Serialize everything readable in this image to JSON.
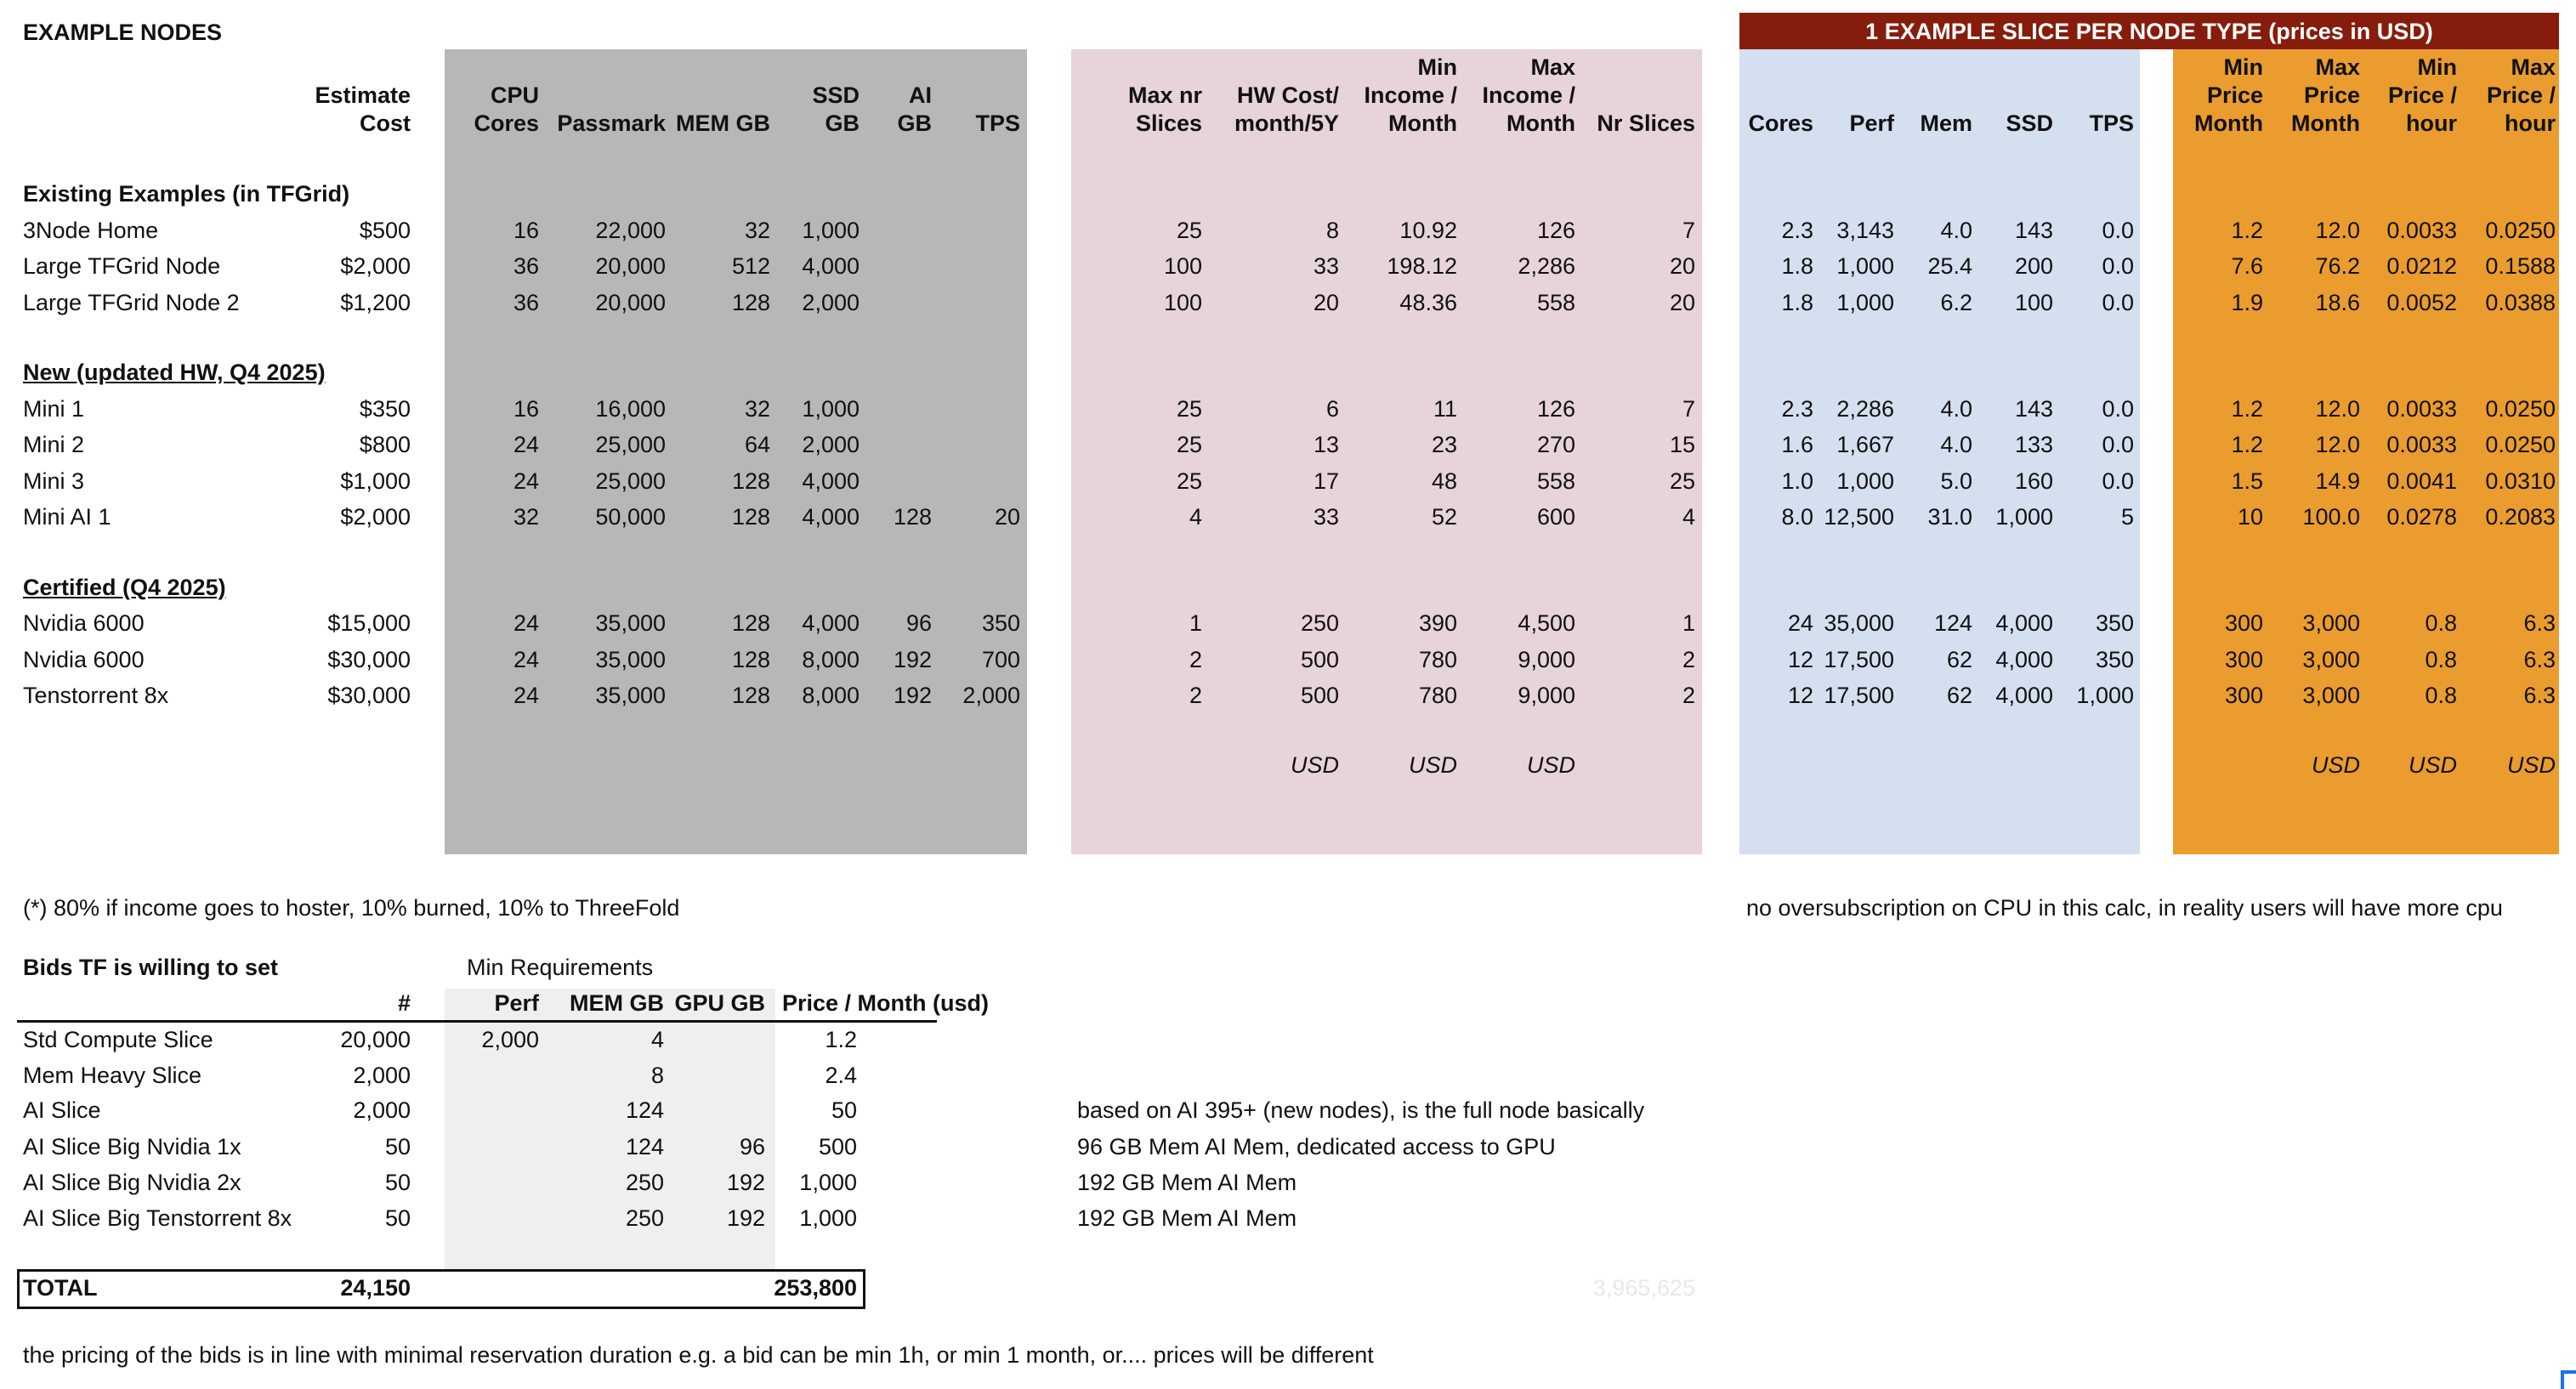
{
  "title": "EXAMPLE NODES",
  "slice_banner": "1 EXAMPLE SLICE PER NODE TYPE (prices in USD)",
  "colors": {
    "gray_band": "#b7b7b7",
    "pink_band": "#e6d3dc",
    "blue_band": "#d4e0f0",
    "orange_band": "#eb9c2e",
    "banner": "#861d0c",
    "bids_band": "#efefef"
  },
  "headers": [
    [
      "",
      "",
      "Estimate"
    ],
    [
      "",
      "",
      "Cost"
    ],
    [
      "",
      "CPU",
      "Cores"
    ],
    [
      "",
      "",
      "Passmark"
    ],
    [
      "",
      "",
      "MEM GB"
    ],
    [
      "",
      "SSD",
      "GB"
    ],
    [
      "",
      "AI",
      "GB"
    ],
    [
      "",
      "",
      "TPS"
    ],
    [
      "",
      "Max nr",
      "Slices"
    ],
    [
      "",
      "HW Cost/",
      "month/5Y"
    ],
    [
      "Min",
      "Income /",
      "Month"
    ],
    [
      "Max",
      "Income /",
      "Month"
    ],
    [
      "",
      "",
      "Nr Slices"
    ],
    [
      "",
      "",
      "Cores"
    ],
    [
      "",
      "",
      "Perf"
    ],
    [
      "",
      "",
      "Mem"
    ],
    [
      "",
      "",
      "SSD"
    ],
    [
      "",
      "",
      "TPS"
    ],
    [
      "Min",
      "Price",
      "Month"
    ],
    [
      "Max",
      "Price",
      "Month"
    ],
    [
      "Min",
      "Price /",
      "hour"
    ],
    [
      "Max",
      "Price /",
      "hour"
    ]
  ],
  "sections": [
    {
      "title": "Existing Examples (in TFGrid)",
      "underline": false,
      "rows": [
        [
          "3Node Home",
          "$500",
          "16",
          "22,000",
          "32",
          "1,000",
          "",
          "",
          "25",
          "8",
          "10.92",
          "126",
          "7",
          "2.3",
          "3,143",
          "4.0",
          "143",
          "0.0",
          "1.2",
          "12.0",
          "0.0033",
          "0.0250"
        ],
        [
          "Large TFGrid Node",
          "$2,000",
          "36",
          "20,000",
          "512",
          "4,000",
          "",
          "",
          "100",
          "33",
          "198.12",
          "2,286",
          "20",
          "1.8",
          "1,000",
          "25.4",
          "200",
          "0.0",
          "7.6",
          "76.2",
          "0.0212",
          "0.1588"
        ],
        [
          "Large TFGrid Node 2",
          "$1,200",
          "36",
          "20,000",
          "128",
          "2,000",
          "",
          "",
          "100",
          "20",
          "48.36",
          "558",
          "20",
          "1.8",
          "1,000",
          "6.2",
          "100",
          "0.0",
          "1.9",
          "18.6",
          "0.0052",
          "0.0388"
        ]
      ]
    },
    {
      "title": "New (updated HW, Q4 2025)",
      "underline": true,
      "rows": [
        [
          "Mini 1",
          "$350",
          "16",
          "16,000",
          "32",
          "1,000",
          "",
          "",
          "25",
          "6",
          "11",
          "126",
          "7",
          "2.3",
          "2,286",
          "4.0",
          "143",
          "0.0",
          "1.2",
          "12.0",
          "0.0033",
          "0.0250"
        ],
        [
          "Mini 2",
          "$800",
          "24",
          "25,000",
          "64",
          "2,000",
          "",
          "",
          "25",
          "13",
          "23",
          "270",
          "15",
          "1.6",
          "1,667",
          "4.0",
          "133",
          "0.0",
          "1.2",
          "12.0",
          "0.0033",
          "0.0250"
        ],
        [
          "Mini 3",
          "$1,000",
          "24",
          "25,000",
          "128",
          "4,000",
          "",
          "",
          "25",
          "17",
          "48",
          "558",
          "25",
          "1.0",
          "1,000",
          "5.0",
          "160",
          "0.0",
          "1.5",
          "14.9",
          "0.0041",
          "0.0310"
        ],
        [
          "Mini AI 1",
          "$2,000",
          "32",
          "50,000",
          "128",
          "4,000",
          "128",
          "20",
          "4",
          "33",
          "52",
          "600",
          "4",
          "8.0",
          "12,500",
          "31.0",
          "1,000",
          "5",
          "10",
          "100.0",
          "0.0278",
          "0.2083"
        ]
      ]
    },
    {
      "title": "Certified (Q4 2025)",
      "underline": true,
      "rows": [
        [
          "Nvidia 6000",
          "$15,000",
          "24",
          "35,000",
          "128",
          "4,000",
          "96",
          "350",
          "1",
          "250",
          "390",
          "4,500",
          "1",
          "24",
          "35,000",
          "124",
          "4,000",
          "350",
          "300",
          "3,000",
          "0.8",
          "6.3"
        ],
        [
          "Nvidia 6000",
          "$30,000",
          "24",
          "35,000",
          "128",
          "8,000",
          "192",
          "700",
          "2",
          "500",
          "780",
          "9,000",
          "2",
          "12",
          "17,500",
          "62",
          "4,000",
          "350",
          "300",
          "3,000",
          "0.8",
          "6.3"
        ],
        [
          "Tenstorrent 8x",
          "$30,000",
          "24",
          "35,000",
          "128",
          "8,000",
          "192",
          "2,000",
          "2",
          "500",
          "780",
          "9,000",
          "2",
          "12",
          "17,500",
          "62",
          "4,000",
          "1,000",
          "300",
          "3,000",
          "0.8",
          "6.3"
        ]
      ]
    }
  ],
  "units_row": [
    "",
    "",
    "",
    "",
    "",
    "",
    "",
    "",
    "",
    "USD",
    "USD",
    "USD",
    "",
    "",
    "",
    "",
    "",
    "",
    "",
    "USD",
    "USD",
    "USD"
  ],
  "notes": {
    "income_split": "(*) 80% if income goes to hoster, 10% burned, 10% to ThreeFold",
    "oversubscription": "no oversubscription on CPU in this calc, in reality users will have more cpu",
    "pricing": "the pricing of the bids is in line with minimal reservation duration e.g. a bid can be min 1h, or min 1 month, or.... prices will be different",
    "faint_total": "3,965,625"
  },
  "bids": {
    "title": "Bids TF is willing to set",
    "min_requirements": "Min Requirements",
    "headers": [
      "",
      "#",
      "Perf",
      "MEM GB",
      "GPU GB",
      "Price / Month (usd)"
    ],
    "rows": [
      {
        "cells": [
          "Std Compute Slice",
          "20,000",
          "2,000",
          "4",
          "",
          "1.2"
        ],
        "note": ""
      },
      {
        "cells": [
          "Mem Heavy Slice",
          "2,000",
          "",
          "8",
          "",
          "2.4"
        ],
        "note": ""
      },
      {
        "cells": [
          "AI Slice",
          "2,000",
          "",
          "124",
          "",
          "50"
        ],
        "note": "based on AI 395+ (new nodes), is the full node basically"
      },
      {
        "cells": [
          "AI Slice Big Nvidia 1x",
          "50",
          "",
          "124",
          "96",
          "500"
        ],
        "note": "96 GB Mem AI Mem, dedicated access to GPU"
      },
      {
        "cells": [
          "AI Slice Big Nvidia 2x",
          "50",
          "",
          "250",
          "192",
          "1,000"
        ],
        "note": "192 GB Mem AI Mem"
      },
      {
        "cells": [
          "AI Slice Big Tenstorrent 8x",
          "50",
          "",
          "250",
          "192",
          "1,000"
        ],
        "note": "192 GB Mem AI Mem"
      }
    ],
    "total": {
      "label": "TOTAL",
      "count": "24,150",
      "price": "253,800"
    }
  }
}
